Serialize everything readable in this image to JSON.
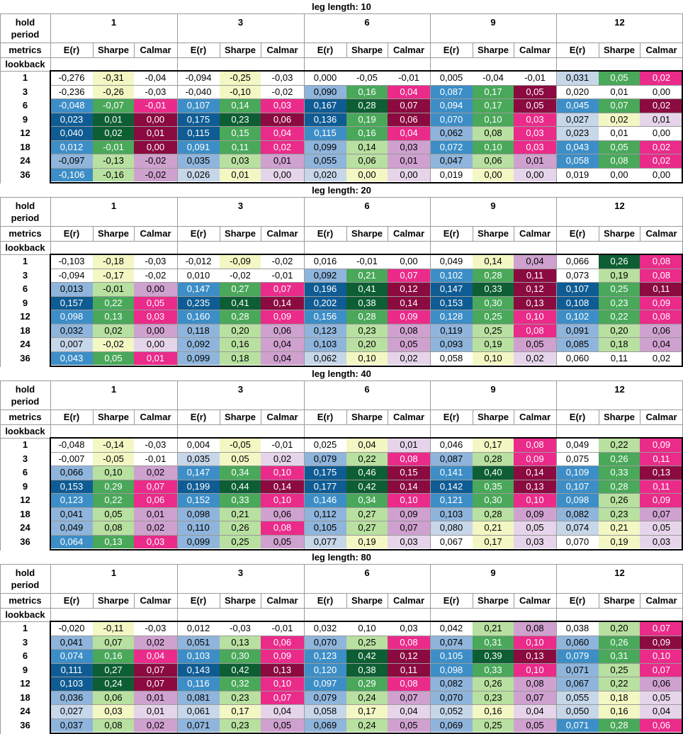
{
  "labels": {
    "hold_period": [
      "hold",
      "period"
    ],
    "metrics": "metrics",
    "lookback": "lookback"
  },
  "lookbacks": [
    "1",
    "3",
    "6",
    "9",
    "12",
    "18",
    "24",
    "36"
  ],
  "hold_periods": [
    "1",
    "3",
    "6",
    "9",
    "12"
  ],
  "metric_names": [
    "E(r)",
    "Sharpe",
    "Calmar"
  ],
  "colors": {
    "er": [
      "#ffffff",
      "#c7d7ea",
      "#8fb5dc",
      "#3d8ec7",
      "#0f5c94"
    ],
    "sharpe": [
      "#ffffff",
      "#f3f7c3",
      "#b8e0a0",
      "#4aa85a",
      "#0d5f33"
    ],
    "calmar": [
      "#ffffff",
      "#e6d5ea",
      "#cfa1cf",
      "#ea2b8a",
      "#8b0b40"
    ]
  },
  "sections": [
    {
      "title": "leg length: 10",
      "rows": [
        [
          "-0,276",
          "-0,31",
          "-0,04",
          "-0,094",
          "-0,25",
          "-0,03",
          "0,000",
          "-0,05",
          "-0,01",
          "0,005",
          "-0,04",
          "-0,01",
          "0,031",
          "0,05",
          "0,02"
        ],
        [
          "-0,236",
          "-0,26",
          "-0,03",
          "-0,040",
          "-0,10",
          "-0,02",
          "0,090",
          "0,16",
          "0,04",
          "0,087",
          "0,17",
          "0,05",
          "0,020",
          "0,01",
          "0,00"
        ],
        [
          "-0,048",
          "-0,07",
          "-0,01",
          "0,107",
          "0,14",
          "0,03",
          "0,167",
          "0,28",
          "0,07",
          "0,094",
          "0,17",
          "0,05",
          "0,045",
          "0,07",
          "0,02"
        ],
        [
          "0,023",
          "0,01",
          "0,00",
          "0,175",
          "0,23",
          "0,06",
          "0,136",
          "0,19",
          "0,06",
          "0,070",
          "0,10",
          "0,03",
          "0,027",
          "0,02",
          "0,01"
        ],
        [
          "0,040",
          "0,02",
          "0,01",
          "0,115",
          "0,15",
          "0,04",
          "0,115",
          "0,16",
          "0,04",
          "0,062",
          "0,08",
          "0,03",
          "0,023",
          "0,01",
          "0,00"
        ],
        [
          "0,012",
          "-0,01",
          "0,00",
          "0,091",
          "0,11",
          "0,02",
          "0,099",
          "0,14",
          "0,03",
          "0,072",
          "0,10",
          "0,03",
          "0,043",
          "0,05",
          "0,02"
        ],
        [
          "-0,097",
          "-0,13",
          "-0,02",
          "0,035",
          "0,03",
          "0,01",
          "0,055",
          "0,06",
          "0,01",
          "0,047",
          "0,06",
          "0,01",
          "0,058",
          "0,08",
          "0,02"
        ],
        [
          "-0,106",
          "-0,16",
          "-0,02",
          "0,026",
          "0,01",
          "0,00",
          "0,020",
          "0,00",
          "0,00",
          "0,019",
          "0,00",
          "0,00",
          "0,019",
          "0,00",
          "0,00"
        ]
      ],
      "shades": [
        [
          0,
          1,
          0,
          0,
          1,
          0,
          0,
          0,
          0,
          0,
          0,
          0,
          1,
          3,
          3
        ],
        [
          0,
          1,
          0,
          0,
          1,
          0,
          2,
          3,
          3,
          3,
          3,
          4,
          0,
          0,
          0
        ],
        [
          3,
          3,
          3,
          3,
          3,
          3,
          4,
          4,
          4,
          3,
          3,
          4,
          3,
          3,
          4
        ],
        [
          4,
          4,
          4,
          4,
          4,
          4,
          4,
          3,
          4,
          3,
          3,
          3,
          1,
          1,
          1
        ],
        [
          4,
          4,
          4,
          4,
          3,
          3,
          3,
          3,
          3,
          2,
          2,
          3,
          1,
          0,
          0
        ],
        [
          3,
          3,
          4,
          3,
          3,
          3,
          2,
          2,
          2,
          3,
          3,
          3,
          3,
          3,
          3
        ],
        [
          2,
          2,
          2,
          2,
          2,
          2,
          2,
          2,
          2,
          2,
          2,
          2,
          3,
          3,
          3
        ],
        [
          3,
          2,
          2,
          1,
          1,
          1,
          1,
          1,
          1,
          0,
          1,
          1,
          0,
          0,
          0
        ]
      ]
    },
    {
      "title": "leg length: 20",
      "rows": [
        [
          "-0,103",
          "-0,18",
          "-0,03",
          "-0,012",
          "-0,09",
          "-0,02",
          "0,016",
          "-0,01",
          "0,00",
          "0,049",
          "0,14",
          "0,04",
          "0,066",
          "0,26",
          "0,08"
        ],
        [
          "-0,094",
          "-0,17",
          "-0,02",
          "0,010",
          "-0,02",
          "-0,01",
          "0,092",
          "0,21",
          "0,07",
          "0,102",
          "0,28",
          "0,11",
          "0,073",
          "0,19",
          "0,08"
        ],
        [
          "0,013",
          "-0,01",
          "0,00",
          "0,147",
          "0,27",
          "0,07",
          "0,196",
          "0,41",
          "0,12",
          "0,147",
          "0,33",
          "0,12",
          "0,107",
          "0,25",
          "0,11"
        ],
        [
          "0,157",
          "0,22",
          "0,05",
          "0,235",
          "0,41",
          "0,14",
          "0,202",
          "0,38",
          "0,14",
          "0,153",
          "0,30",
          "0,13",
          "0,108",
          "0,23",
          "0,09"
        ],
        [
          "0,098",
          "0,13",
          "0,03",
          "0,160",
          "0,28",
          "0,09",
          "0,156",
          "0,28",
          "0,09",
          "0,128",
          "0,25",
          "0,10",
          "0,102",
          "0,22",
          "0,08"
        ],
        [
          "0,032",
          "0,02",
          "0,00",
          "0,118",
          "0,20",
          "0,06",
          "0,123",
          "0,23",
          "0,08",
          "0,119",
          "0,25",
          "0,08",
          "0,091",
          "0,20",
          "0,06"
        ],
        [
          "0,007",
          "-0,02",
          "0,00",
          "0,092",
          "0,16",
          "0,04",
          "0,103",
          "0,20",
          "0,05",
          "0,093",
          "0,19",
          "0,05",
          "0,085",
          "0,18",
          "0,04"
        ],
        [
          "0,043",
          "0,05",
          "0,01",
          "0,099",
          "0,18",
          "0,04",
          "0,062",
          "0,10",
          "0,02",
          "0,058",
          "0,10",
          "0,02",
          "0,060",
          "0,11",
          "0,02"
        ]
      ],
      "shades": [
        [
          0,
          1,
          0,
          0,
          1,
          0,
          0,
          0,
          0,
          0,
          1,
          2,
          0,
          4,
          3
        ],
        [
          0,
          1,
          0,
          0,
          0,
          0,
          2,
          3,
          3,
          3,
          3,
          4,
          0,
          2,
          3
        ],
        [
          2,
          2,
          2,
          3,
          3,
          3,
          4,
          4,
          4,
          4,
          4,
          4,
          4,
          3,
          4
        ],
        [
          4,
          3,
          3,
          4,
          4,
          4,
          4,
          4,
          4,
          4,
          3,
          4,
          4,
          3,
          3
        ],
        [
          3,
          3,
          3,
          3,
          3,
          3,
          3,
          3,
          3,
          3,
          3,
          3,
          3,
          3,
          3
        ],
        [
          2,
          2,
          2,
          2,
          2,
          2,
          2,
          2,
          2,
          2,
          2,
          3,
          2,
          2,
          2
        ],
        [
          1,
          1,
          1,
          2,
          2,
          2,
          2,
          2,
          2,
          2,
          2,
          2,
          2,
          2,
          2
        ],
        [
          3,
          3,
          3,
          2,
          2,
          2,
          1,
          1,
          1,
          0,
          1,
          1,
          0,
          0,
          0
        ]
      ]
    },
    {
      "title": "leg length: 40",
      "rows": [
        [
          "-0,048",
          "-0,14",
          "-0,03",
          "0,004",
          "-0,05",
          "-0,01",
          "0,025",
          "0,04",
          "0,01",
          "0,046",
          "0,17",
          "0,08",
          "0,049",
          "0,22",
          "0,09"
        ],
        [
          "-0,007",
          "-0,05",
          "-0,01",
          "0,035",
          "0,05",
          "0,02",
          "0,079",
          "0,22",
          "0,08",
          "0,087",
          "0,28",
          "0,09",
          "0,075",
          "0,26",
          "0,11"
        ],
        [
          "0,066",
          "0,10",
          "0,02",
          "0,147",
          "0,34",
          "0,10",
          "0,175",
          "0,46",
          "0,15",
          "0,141",
          "0,40",
          "0,14",
          "0,109",
          "0,33",
          "0,13"
        ],
        [
          "0,153",
          "0,29",
          "0,07",
          "0,199",
          "0,44",
          "0,14",
          "0,177",
          "0,42",
          "0,14",
          "0,142",
          "0,35",
          "0,13",
          "0,107",
          "0,28",
          "0,11"
        ],
        [
          "0,123",
          "0,22",
          "0,06",
          "0,152",
          "0,33",
          "0,10",
          "0,146",
          "0,34",
          "0,10",
          "0,121",
          "0,30",
          "0,10",
          "0,098",
          "0,26",
          "0,09"
        ],
        [
          "0,041",
          "0,05",
          "0,01",
          "0,098",
          "0,21",
          "0,06",
          "0,112",
          "0,27",
          "0,09",
          "0,103",
          "0,28",
          "0,09",
          "0,082",
          "0,23",
          "0,07"
        ],
        [
          "0,049",
          "0,08",
          "0,02",
          "0,110",
          "0,26",
          "0,08",
          "0,105",
          "0,27",
          "0,07",
          "0,080",
          "0,21",
          "0,05",
          "0,074",
          "0,21",
          "0,05"
        ],
        [
          "0,064",
          "0,13",
          "0,03",
          "0,099",
          "0,25",
          "0,05",
          "0,077",
          "0,19",
          "0,03",
          "0,067",
          "0,17",
          "0,03",
          "0,070",
          "0,19",
          "0,03"
        ]
      ],
      "shades": [
        [
          0,
          1,
          0,
          0,
          1,
          0,
          0,
          1,
          1,
          0,
          1,
          3,
          0,
          2,
          3
        ],
        [
          0,
          1,
          0,
          1,
          1,
          1,
          2,
          2,
          3,
          2,
          2,
          3,
          0,
          3,
          3
        ],
        [
          2,
          2,
          2,
          3,
          3,
          3,
          4,
          4,
          4,
          3,
          4,
          4,
          3,
          3,
          4
        ],
        [
          4,
          3,
          3,
          4,
          4,
          4,
          4,
          4,
          4,
          4,
          3,
          4,
          3,
          3,
          3
        ],
        [
          3,
          3,
          3,
          3,
          3,
          3,
          3,
          3,
          3,
          3,
          3,
          3,
          3,
          2,
          3
        ],
        [
          2,
          2,
          2,
          2,
          2,
          2,
          2,
          2,
          2,
          2,
          2,
          2,
          2,
          2,
          2
        ],
        [
          2,
          2,
          2,
          2,
          2,
          3,
          2,
          2,
          2,
          1,
          1,
          1,
          1,
          1,
          1
        ],
        [
          3,
          3,
          3,
          2,
          2,
          2,
          1,
          1,
          1,
          0,
          1,
          1,
          0,
          1,
          1
        ]
      ]
    },
    {
      "title": "leg length: 80",
      "rows": [
        [
          "-0,020",
          "-0,11",
          "-0,03",
          "0,012",
          "-0,03",
          "-0,01",
          "0,032",
          "0,10",
          "0,03",
          "0,042",
          "0,21",
          "0,08",
          "0,038",
          "0,20",
          "0,07"
        ],
        [
          "0,041",
          "0,07",
          "0,02",
          "0,051",
          "0,13",
          "0,06",
          "0,070",
          "0,25",
          "0,08",
          "0,074",
          "0,31",
          "0,10",
          "0,060",
          "0,26",
          "0,09"
        ],
        [
          "0,074",
          "0,16",
          "0,04",
          "0,103",
          "0,30",
          "0,09",
          "0,123",
          "0,42",
          "0,12",
          "0,105",
          "0,39",
          "0,13",
          "0,079",
          "0,31",
          "0,10"
        ],
        [
          "0,111",
          "0,27",
          "0,07",
          "0,143",
          "0,42",
          "0,13",
          "0,120",
          "0,38",
          "0,11",
          "0,098",
          "0,33",
          "0,10",
          "0,071",
          "0,25",
          "0,07"
        ],
        [
          "0,103",
          "0,24",
          "0,07",
          "0,116",
          "0,32",
          "0,10",
          "0,097",
          "0,29",
          "0,08",
          "0,082",
          "0,26",
          "0,08",
          "0,067",
          "0,22",
          "0,06"
        ],
        [
          "0,036",
          "0,06",
          "0,01",
          "0,081",
          "0,23",
          "0,07",
          "0,079",
          "0,24",
          "0,07",
          "0,070",
          "0,23",
          "0,07",
          "0,055",
          "0,18",
          "0,05"
        ],
        [
          "0,027",
          "0,03",
          "0,01",
          "0,061",
          "0,17",
          "0,04",
          "0,058",
          "0,17",
          "0,04",
          "0,052",
          "0,16",
          "0,04",
          "0,050",
          "0,16",
          "0,04"
        ],
        [
          "0,037",
          "0,08",
          "0,02",
          "0,071",
          "0,23",
          "0,05",
          "0,069",
          "0,24",
          "0,05",
          "0,069",
          "0,25",
          "0,05",
          "0,071",
          "0,28",
          "0,06"
        ]
      ],
      "shades": [
        [
          0,
          1,
          0,
          0,
          0,
          0,
          0,
          0,
          0,
          0,
          2,
          2,
          0,
          2,
          3
        ],
        [
          2,
          2,
          2,
          2,
          2,
          3,
          2,
          2,
          3,
          2,
          3,
          3,
          2,
          3,
          4
        ],
        [
          3,
          3,
          3,
          3,
          3,
          3,
          3,
          4,
          4,
          3,
          4,
          4,
          3,
          3,
          3
        ],
        [
          4,
          4,
          4,
          4,
          4,
          4,
          3,
          4,
          4,
          3,
          3,
          3,
          2,
          2,
          3
        ],
        [
          4,
          4,
          4,
          3,
          3,
          3,
          3,
          3,
          3,
          2,
          2,
          2,
          2,
          2,
          2
        ],
        [
          2,
          2,
          2,
          2,
          2,
          3,
          2,
          2,
          2,
          2,
          2,
          2,
          1,
          1,
          1
        ],
        [
          1,
          1,
          1,
          1,
          1,
          1,
          1,
          1,
          1,
          1,
          1,
          1,
          1,
          1,
          1
        ],
        [
          2,
          2,
          2,
          2,
          2,
          2,
          2,
          2,
          2,
          2,
          2,
          2,
          3,
          3,
          3
        ]
      ]
    }
  ]
}
